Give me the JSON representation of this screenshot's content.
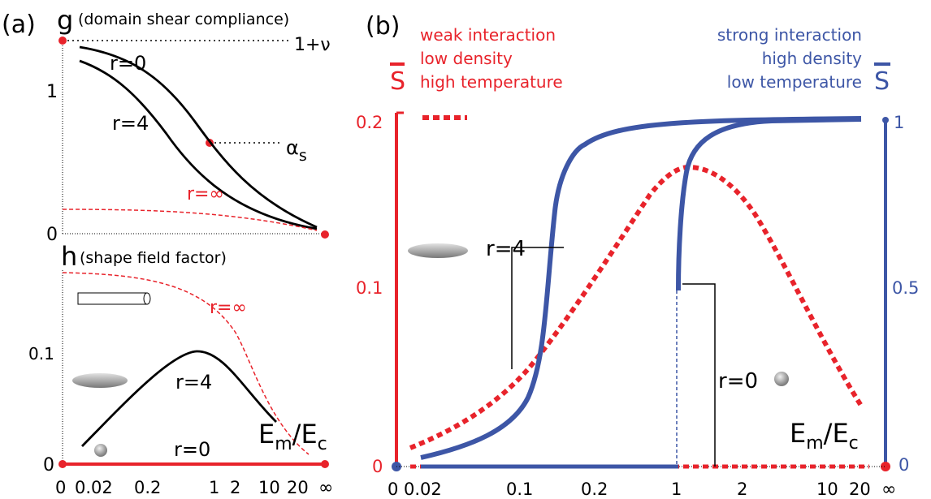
{
  "panel_a": {
    "label": "(a)",
    "g_symbol": "g",
    "g_title": "(domain shear compliance)",
    "h_symbol": "h",
    "h_title": "(shape field factor)",
    "g_ymax_label": "1+ν",
    "alpha_label": "α",
    "alpha_sub": "s",
    "xaxis_symbol": "E",
    "xaxis_sub_m": "m",
    "xaxis_slash": "/E",
    "xaxis_sub_c": "c"
  },
  "panel_b": {
    "label": "(b)",
    "left_labels": [
      "weak interaction",
      "low density",
      "high temperature"
    ],
    "right_labels": [
      "strong interaction",
      "high density",
      "low temperature"
    ],
    "s_symbol": "S",
    "xaxis_symbol": "E",
    "xaxis_sub_m": "m",
    "xaxis_slash": "/E",
    "xaxis_sub_c": "c"
  },
  "colors": {
    "red": "#e8232b",
    "blue": "#3d56a6",
    "black": "#000000",
    "grey": "#9a9a9a"
  },
  "chart_data": [
    {
      "type": "line",
      "panel": "a-top",
      "title": "g (domain shear compliance)",
      "xlabel": "Em/Ec",
      "x_scale": "log (0 … ∞)",
      "x_ticks": [
        "0",
        "0.02",
        "0.2",
        "1",
        "2",
        "10",
        "20",
        "∞"
      ],
      "y_ticks": [
        "0",
        "1"
      ],
      "ylim": [
        0,
        1.3
      ],
      "annotations": [
        "1+ν",
        "αs"
      ],
      "series": [
        {
          "name": "r=0",
          "x": [
            0.01,
            0.02,
            0.05,
            0.1,
            0.2,
            0.5,
            1,
            2,
            5,
            10,
            20,
            30
          ],
          "values": [
            1.28,
            1.27,
            1.24,
            1.18,
            1.07,
            0.82,
            0.6,
            0.39,
            0.2,
            0.1,
            0.05,
            0.03
          ]
        },
        {
          "name": "r=4",
          "x": [
            0.01,
            0.02,
            0.05,
            0.1,
            0.2,
            0.5,
            1,
            2,
            5,
            10,
            20,
            30
          ],
          "values": [
            1.25,
            1.22,
            1.14,
            1.03,
            0.87,
            0.6,
            0.42,
            0.27,
            0.14,
            0.08,
            0.04,
            0.025
          ]
        },
        {
          "name": "r=∞",
          "x": [
            0.01,
            0.05,
            0.2,
            0.5,
            1,
            2,
            5,
            10,
            20,
            30
          ],
          "values": [
            0.2,
            0.2,
            0.19,
            0.17,
            0.15,
            0.12,
            0.08,
            0.05,
            0.03,
            0.02
          ]
        }
      ]
    },
    {
      "type": "line",
      "panel": "a-bottom",
      "title": "h (shape field factor)",
      "xlabel": "Em/Ec",
      "x_scale": "log (0 … ∞)",
      "x_ticks": [
        "0",
        "0.02",
        "0.2",
        "1",
        "2",
        "10",
        "20",
        "∞"
      ],
      "y_ticks": [
        "0",
        "0.1"
      ],
      "ylim": [
        0,
        0.17
      ],
      "series": [
        {
          "name": "r=∞",
          "x": [
            0.01,
            0.05,
            0.2,
            0.5,
            1,
            2,
            5,
            10,
            30
          ],
          "values": [
            0.165,
            0.16,
            0.15,
            0.13,
            0.11,
            0.085,
            0.05,
            0.03,
            0.015
          ]
        },
        {
          "name": "r=4",
          "x": [
            0.02,
            0.05,
            0.1,
            0.2,
            0.5,
            1,
            2,
            5,
            10,
            15
          ],
          "values": [
            0.015,
            0.03,
            0.05,
            0.075,
            0.095,
            0.098,
            0.09,
            0.06,
            0.035,
            0.028
          ]
        },
        {
          "name": "r=0",
          "x": [
            0.02,
            1,
            30
          ],
          "values": [
            0,
            0,
            0
          ]
        }
      ]
    },
    {
      "type": "line",
      "panel": "b",
      "xlabel": "Em/Ec",
      "x_scale": "log (0 … ∞)",
      "x_ticks": [
        "0",
        "0.02",
        "0.1",
        "0.2",
        "1",
        "2",
        "10",
        "20",
        "∞"
      ],
      "y_ticks_left": [
        "0",
        "0.1",
        "0.2"
      ],
      "y_ticks_right": [
        "0",
        "0.5",
        "1"
      ],
      "ylim_left": [
        0,
        0.2
      ],
      "ylim_right": [
        0,
        1
      ],
      "series": [
        {
          "name": "r=4",
          "axis": "right",
          "style": "solid",
          "x": [
            0.02,
            0.05,
            0.1,
            0.12,
            0.15,
            0.18,
            0.2,
            0.3,
            0.5,
            1,
            5,
            20
          ],
          "values": [
            0.02,
            0.06,
            0.2,
            0.35,
            0.7,
            0.89,
            0.92,
            0.95,
            0.97,
            0.98,
            0.99,
            1.0
          ]
        },
        {
          "name": "r=0",
          "axis": "right",
          "style": "solid",
          "x": [
            1.05,
            1.06,
            1.1,
            1.2,
            1.5,
            2,
            5,
            20
          ],
          "values": [
            0.42,
            0.7,
            0.82,
            0.9,
            0.95,
            0.97,
            0.99,
            1.0
          ]
        },
        {
          "name": "r=4 (weak)",
          "axis": "left",
          "style": "dotted",
          "x": [
            0.02,
            0.05,
            0.1,
            0.2,
            0.5,
            1,
            1.5,
            2,
            5,
            10,
            20
          ],
          "values": [
            0.01,
            0.025,
            0.045,
            0.08,
            0.14,
            0.168,
            0.17,
            0.165,
            0.12,
            0.075,
            0.045
          ]
        },
        {
          "name": "r=0 (weak)",
          "axis": "left",
          "style": "dotted",
          "x": [
            0.02,
            1,
            20
          ],
          "values": [
            0,
            0,
            0
          ]
        }
      ]
    }
  ],
  "labels": {
    "r0": "r=0",
    "r4": "r=4",
    "rinf": "r=∞"
  }
}
